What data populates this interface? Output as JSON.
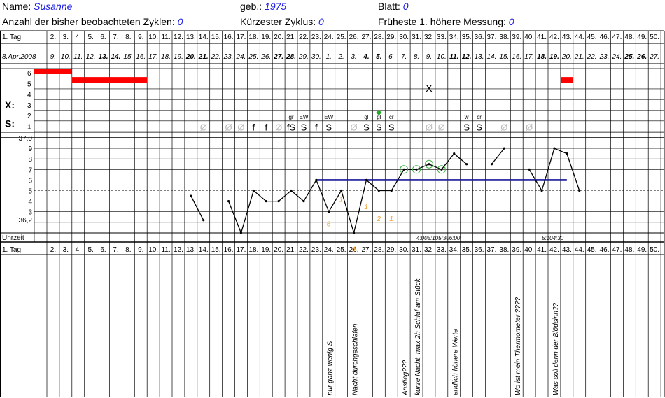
{
  "header": {
    "name_label": "Name:",
    "name_value": "Susanne",
    "geb_label": "geb.:",
    "geb_value": "1975",
    "blatt_label": "Blatt:",
    "blatt_value": "0",
    "cycles_label": "Anzahl der bisher beobachteten Zyklen:",
    "cycles_value": "0",
    "shortest_label": "Kürzester Zyklus:",
    "shortest_value": "0",
    "earliest_label": "Früheste 1. höhere Messung:",
    "earliest_value": "0"
  },
  "labels": {
    "tag": "1. Tag",
    "uhrzeit": "Uhrzeit",
    "x_axis": "X:",
    "s_axis": "S:",
    "x_ticks": [
      "6",
      "5",
      "4",
      "3",
      "2",
      "1"
    ],
    "temp_ticks": [
      "37,0",
      "9",
      "8",
      "7",
      "6",
      "5",
      "4",
      "3",
      "36,2"
    ],
    "s_tick": "1",
    "x_mark": "X"
  },
  "days": [
    "2.",
    "3.",
    "4.",
    "5.",
    "6.",
    "7.",
    "8.",
    "9.",
    "10.",
    "11.",
    "12.",
    "13.",
    "14.",
    "15.",
    "16.",
    "17.",
    "18.",
    "19.",
    "20.",
    "21.",
    "22.",
    "23.",
    "24.",
    "25.",
    "26.",
    "27.",
    "28.",
    "29.",
    "30.",
    "31.",
    "32.",
    "33.",
    "34.",
    "35.",
    "36.",
    "37.",
    "38.",
    "39.",
    "40.",
    "41.",
    "42.",
    "43.",
    "44.",
    "45.",
    "46.",
    "47.",
    "48.",
    "49.",
    "50."
  ],
  "date_first": "8.Apr.2008",
  "dates": [
    "9.",
    "10.",
    "11.",
    "12.",
    "13.",
    "14.",
    "15.",
    "16.",
    "17.",
    "18.",
    "19.",
    "20.",
    "21.",
    "22.",
    "23.",
    "24.",
    "25.",
    "26.",
    "27.",
    "28.",
    "29.",
    "30.",
    "1.",
    "2.",
    "3.",
    "4.",
    "5.",
    "6.",
    "7.",
    "8.",
    "9.",
    "10.",
    "11.",
    "12.",
    "13.",
    "14.",
    "15.",
    "16.",
    "17.",
    "18.",
    "19.",
    "20.",
    "21.",
    "22.",
    "23.",
    "24.",
    "25.",
    "26.",
    "27."
  ],
  "dates_bold": [
    "12.",
    "13.",
    "19.",
    "20.",
    "26.",
    "27.",
    "3.",
    "4.",
    "10.",
    "11.",
    "17.",
    "18.",
    "24.",
    "25."
  ],
  "dates_bold_cols": [
    5,
    6,
    12,
    13,
    19,
    20,
    26,
    27,
    33,
    34,
    40,
    41,
    47,
    48
  ],
  "bleeding": [
    [
      1,
      6
    ],
    [
      2,
      6
    ],
    [
      3,
      6
    ],
    [
      4,
      5
    ],
    [
      5,
      5
    ],
    [
      6,
      5
    ],
    [
      7,
      5
    ],
    [
      8,
      5
    ],
    [
      9,
      5
    ],
    [
      43,
      5
    ]
  ],
  "temperature": [
    [
      [
        12,
        4.5
      ],
      [
        13,
        2.2
      ]
    ],
    [
      [
        15,
        4.0
      ],
      [
        16,
        1.0
      ],
      [
        17,
        5.0
      ],
      [
        18,
        4.0
      ],
      [
        19,
        4.0
      ],
      [
        20,
        5.0
      ],
      [
        21,
        4.0
      ],
      [
        22,
        6.0
      ],
      [
        23,
        3.0
      ],
      [
        24,
        5.0
      ],
      [
        25,
        1.0
      ],
      [
        26,
        6.0
      ],
      [
        27,
        5.0
      ],
      [
        28,
        5.0
      ],
      [
        29,
        7.0
      ],
      [
        30,
        7.0
      ],
      [
        31,
        7.5
      ],
      [
        32,
        7.0
      ],
      [
        33,
        8.5
      ],
      [
        34,
        7.5
      ]
    ],
    [
      [
        36,
        7.5
      ],
      [
        37,
        9.0
      ]
    ],
    [
      [
        39,
        7.0
      ],
      [
        40,
        5.0
      ],
      [
        41,
        9.0
      ],
      [
        42,
        8.5
      ],
      [
        43,
        5.0
      ]
    ]
  ],
  "circled": [
    29,
    30,
    31,
    32
  ],
  "coverline": {
    "from": 22,
    "to": 42,
    "value": 6.0
  },
  "high_counts": [
    [
      24,
      "1",
      "4.2"
    ],
    [
      26,
      "1",
      "3.5"
    ],
    [
      27,
      "2",
      "2.4"
    ],
    [
      28,
      "1",
      "2.4"
    ],
    [
      23,
      "6",
      "1.9"
    ],
    [
      25,
      "4",
      "-0.5"
    ]
  ],
  "mucus": [
    [
      13,
      "Ø",
      ""
    ],
    [
      15,
      "Ø",
      ""
    ],
    [
      16,
      "Ø",
      ""
    ],
    [
      17,
      "f",
      ""
    ],
    [
      18,
      "f",
      ""
    ],
    [
      19,
      "Ø",
      ""
    ],
    [
      20,
      "fS",
      "gr"
    ],
    [
      21,
      "S",
      "EW"
    ],
    [
      22,
      "f",
      ""
    ],
    [
      23,
      "S",
      "EW"
    ],
    [
      25,
      "Ø",
      ""
    ],
    [
      26,
      "S",
      "gl"
    ],
    [
      27,
      "S",
      "gl"
    ],
    [
      28,
      "S",
      "cr"
    ],
    [
      31,
      "Ø",
      ""
    ],
    [
      32,
      "Ø",
      ""
    ],
    [
      34,
      "S",
      "w"
    ],
    [
      35,
      "S",
      "cr"
    ],
    [
      37,
      "Ø",
      ""
    ],
    [
      39,
      "Ø",
      ""
    ]
  ],
  "x_mark_col": 31,
  "diamond_col": 27,
  "times": [
    [
      31,
      "4:005:105:306:00"
    ],
    [
      41,
      "5:104:30"
    ]
  ],
  "notes": [
    [
      24,
      "nur ganz wenig S"
    ],
    [
      26,
      "Nacht durchgeschlafen"
    ],
    [
      30,
      "Anstieg???"
    ],
    [
      31,
      "kurze Nacht, max 2h Schlaf am Stück"
    ],
    [
      34,
      "endlich höhere Werte"
    ],
    [
      39,
      "Wo ist mein Thermometer ????"
    ],
    [
      42,
      "Was soll denn der Blödsinn??"
    ]
  ],
  "colors": {
    "bleeding": "#ff0000",
    "coverline": "#1a1a99",
    "circle": "#3cb043",
    "high_count": "#f0a030",
    "faded": "#bbbbbb",
    "accent": "#1a1ae6"
  }
}
